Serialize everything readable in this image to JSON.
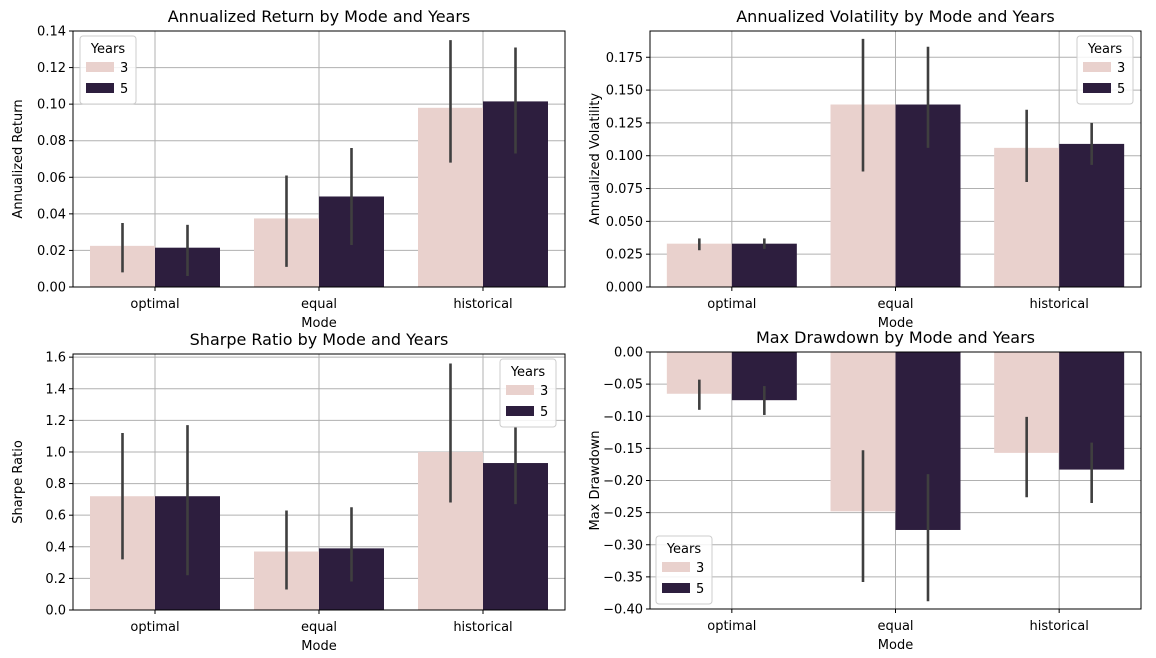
{
  "colors": {
    "years_3": "#e9d1cd",
    "years_5": "#2d1e3e",
    "errorbar": "#3f3f3f",
    "grid": "#b0b0b0"
  },
  "chart_data": [
    {
      "type": "bar",
      "title": "Annualized Return by Mode and Years",
      "xlabel": "Mode",
      "ylabel": "Annualized Return",
      "categories": [
        "optimal",
        "equal",
        "historical"
      ],
      "ylim": [
        0,
        0.14
      ],
      "yticks": [
        "0.00",
        "0.02",
        "0.04",
        "0.06",
        "0.08",
        "0.10",
        "0.12",
        "0.14"
      ],
      "grid": true,
      "legend": {
        "title": "Years",
        "position": "upper-left",
        "labels": [
          "3",
          "5"
        ]
      },
      "series": [
        {
          "name": "3",
          "values": [
            0.0225,
            0.0375,
            0.098
          ],
          "err_low": [
            0.008,
            0.011,
            0.068
          ],
          "err_high": [
            0.035,
            0.061,
            0.135
          ]
        },
        {
          "name": "5",
          "values": [
            0.0215,
            0.0495,
            0.1015
          ],
          "err_low": [
            0.006,
            0.023,
            0.073
          ],
          "err_high": [
            0.034,
            0.076,
            0.131
          ]
        }
      ]
    },
    {
      "type": "bar",
      "title": "Annualized Volatility by Mode and Years",
      "xlabel": "Mode",
      "ylabel": "Annualized Volatility",
      "categories": [
        "optimal",
        "equal",
        "historical"
      ],
      "ylim": [
        0,
        0.195
      ],
      "yticks": [
        "0.000",
        "0.025",
        "0.050",
        "0.075",
        "0.100",
        "0.125",
        "0.150",
        "0.175"
      ],
      "grid": true,
      "legend": {
        "title": "Years",
        "position": "upper-right",
        "labels": [
          "3",
          "5"
        ]
      },
      "series": [
        {
          "name": "3",
          "values": [
            0.033,
            0.139,
            0.106
          ],
          "err_low": [
            0.028,
            0.088,
            0.08
          ],
          "err_high": [
            0.037,
            0.189,
            0.135
          ]
        },
        {
          "name": "5",
          "values": [
            0.033,
            0.139,
            0.109
          ],
          "err_low": [
            0.029,
            0.106,
            0.093
          ],
          "err_high": [
            0.037,
            0.183,
            0.125
          ]
        }
      ]
    },
    {
      "type": "bar",
      "title": "Sharpe Ratio by Mode and Years",
      "xlabel": "Mode",
      "ylabel": "Sharpe Ratio",
      "categories": [
        "optimal",
        "equal",
        "historical"
      ],
      "ylim": [
        0,
        1.62
      ],
      "yticks": [
        "0.0",
        "0.2",
        "0.4",
        "0.6",
        "0.8",
        "1.0",
        "1.2",
        "1.4",
        "1.6"
      ],
      "grid": true,
      "legend": {
        "title": "Years",
        "position": "upper-right",
        "labels": [
          "3",
          "5"
        ]
      },
      "series": [
        {
          "name": "3",
          "values": [
            0.72,
            0.37,
            1.0
          ],
          "err_low": [
            0.32,
            0.13,
            0.68
          ],
          "err_high": [
            1.12,
            0.63,
            1.56
          ]
        },
        {
          "name": "5",
          "values": [
            0.72,
            0.39,
            0.93
          ],
          "err_low": [
            0.22,
            0.18,
            0.67
          ],
          "err_high": [
            1.17,
            0.65,
            1.16
          ]
        }
      ]
    },
    {
      "type": "bar",
      "title": "Max Drawdown by Mode and Years",
      "xlabel": "Mode",
      "ylabel": "Max Drawdown",
      "categories": [
        "optimal",
        "equal",
        "historical"
      ],
      "ylim": [
        -0.4,
        0.0
      ],
      "yticks": [
        "−0.40",
        "−0.35",
        "−0.30",
        "−0.25",
        "−0.20",
        "−0.15",
        "−0.10",
        "−0.05",
        "0.00"
      ],
      "grid": true,
      "legend": {
        "title": "Years",
        "position": "lower-left",
        "labels": [
          "3",
          "5"
        ]
      },
      "series": [
        {
          "name": "3",
          "values": [
            -0.065,
            -0.248,
            -0.157
          ],
          "err_low": [
            -0.09,
            -0.358,
            -0.226
          ],
          "err_high": [
            -0.043,
            -0.153,
            -0.101
          ]
        },
        {
          "name": "5",
          "values": [
            -0.075,
            -0.277,
            -0.183
          ],
          "err_low": [
            -0.098,
            -0.388,
            -0.235
          ],
          "err_high": [
            -0.053,
            -0.19,
            -0.141
          ]
        }
      ]
    }
  ]
}
